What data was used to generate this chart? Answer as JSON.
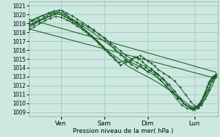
{
  "title": "Pression niveau de la mer( hPa )",
  "ylim": [
    1008.5,
    1021.5
  ],
  "yticks": [
    1009,
    1010,
    1011,
    1012,
    1013,
    1014,
    1015,
    1016,
    1017,
    1018,
    1019,
    1020,
    1021
  ],
  "xtick_positions": [
    0.18,
    0.42,
    0.66,
    0.92
  ],
  "xtick_labels": [
    "Ven",
    "Sam",
    "Dim",
    "Lun"
  ],
  "bg_color": "#cce8e0",
  "grid_color": "#a0c8bc",
  "line_color": "#1a5c28",
  "xlim": [
    0.0,
    1.05
  ],
  "fig_width": 3.2,
  "fig_height": 2.0,
  "dpi": 100,
  "lines": [
    {
      "pts": [
        0.0,
        1018.8,
        0.02,
        1019.0,
        0.04,
        1019.2,
        0.06,
        1019.4,
        0.08,
        1019.6,
        0.1,
        1019.9,
        0.12,
        1020.1,
        0.14,
        1020.2,
        0.16,
        1020.3,
        0.18,
        1020.2,
        0.2,
        1020.0,
        0.22,
        1019.8,
        0.24,
        1019.5,
        0.27,
        1019.2,
        0.3,
        1018.9,
        0.33,
        1018.6,
        0.36,
        1018.2,
        0.39,
        1017.8,
        0.42,
        1017.4,
        0.45,
        1016.9,
        0.48,
        1016.4,
        0.51,
        1015.9,
        0.54,
        1015.4,
        0.57,
        1015.0,
        0.6,
        1015.2,
        0.62,
        1015.4,
        0.64,
        1015.1,
        0.66,
        1014.8,
        0.68,
        1014.5,
        0.7,
        1014.2,
        0.72,
        1013.8,
        0.75,
        1013.4,
        0.78,
        1013.0,
        0.81,
        1012.5,
        0.84,
        1011.8,
        0.87,
        1011.0,
        0.9,
        1010.2,
        0.92,
        1009.7,
        0.94,
        1009.4,
        0.96,
        1009.8,
        0.98,
        1010.5,
        1.0,
        1011.5,
        1.02,
        1012.5,
        1.04,
        1013.0
      ],
      "marker": true
    },
    {
      "pts": [
        0.0,
        1019.0,
        0.02,
        1019.3,
        0.05,
        1019.6,
        0.08,
        1019.9,
        0.11,
        1020.2,
        0.14,
        1020.4,
        0.17,
        1020.5,
        0.19,
        1020.4,
        0.21,
        1020.2,
        0.24,
        1019.9,
        0.27,
        1019.5,
        0.3,
        1019.1,
        0.33,
        1018.7,
        0.36,
        1018.3,
        0.39,
        1017.8,
        0.42,
        1017.3,
        0.45,
        1016.7,
        0.48,
        1016.1,
        0.51,
        1015.5,
        0.54,
        1014.9,
        0.57,
        1014.4,
        0.6,
        1014.0,
        0.62,
        1014.2,
        0.64,
        1013.9,
        0.66,
        1013.5,
        0.68,
        1013.8,
        0.7,
        1013.5,
        0.72,
        1013.2,
        0.75,
        1012.7,
        0.78,
        1012.1,
        0.81,
        1011.4,
        0.84,
        1010.6,
        0.87,
        1009.8,
        0.9,
        1009.4,
        0.92,
        1009.3,
        0.94,
        1009.5,
        0.96,
        1010.0,
        0.98,
        1011.0,
        1.0,
        1012.2,
        1.02,
        1012.8,
        1.04,
        1013.1
      ],
      "marker": true
    },
    {
      "pts": [
        0.0,
        1018.5,
        0.03,
        1018.9,
        0.06,
        1019.3,
        0.09,
        1019.6,
        0.12,
        1019.9,
        0.15,
        1020.1,
        0.18,
        1020.0,
        0.2,
        1019.8,
        0.23,
        1019.4,
        0.26,
        1019.0,
        0.29,
        1018.6,
        0.32,
        1018.1,
        0.35,
        1017.6,
        0.38,
        1017.0,
        0.41,
        1016.4,
        0.44,
        1015.8,
        0.47,
        1015.2,
        0.5,
        1014.6,
        0.53,
        1014.8,
        0.56,
        1014.6,
        0.59,
        1015.2,
        0.61,
        1015.0,
        0.63,
        1014.7,
        0.65,
        1014.3,
        0.68,
        1013.9,
        0.71,
        1013.4,
        0.74,
        1012.8,
        0.77,
        1012.1,
        0.8,
        1011.4,
        0.83,
        1010.6,
        0.86,
        1010.0,
        0.89,
        1009.6,
        0.92,
        1009.4,
        0.94,
        1009.8,
        0.96,
        1010.3,
        0.98,
        1011.2,
        1.0,
        1012.4,
        1.02,
        1013.0,
        1.04,
        1013.2
      ],
      "marker": true
    },
    {
      "pts": [
        0.0,
        1018.3,
        0.03,
        1018.6,
        0.06,
        1019.0,
        0.09,
        1019.3,
        0.12,
        1019.6,
        0.15,
        1019.8,
        0.18,
        1019.7,
        0.21,
        1019.4,
        0.24,
        1019.1,
        0.27,
        1018.7,
        0.3,
        1018.3,
        0.33,
        1017.8,
        0.36,
        1017.3,
        0.39,
        1016.7,
        0.42,
        1016.1,
        0.45,
        1015.5,
        0.48,
        1014.9,
        0.51,
        1014.3,
        0.54,
        1014.6,
        0.57,
        1014.9,
        0.6,
        1014.6,
        0.62,
        1014.4,
        0.65,
        1014.1,
        0.67,
        1013.7,
        0.7,
        1013.3,
        0.73,
        1012.7,
        0.76,
        1012.0,
        0.79,
        1011.3,
        0.82,
        1010.5,
        0.85,
        1009.8,
        0.88,
        1009.4,
        0.91,
        1009.3,
        0.93,
        1009.5,
        0.95,
        1010.0,
        0.97,
        1010.8,
        0.99,
        1011.8,
        1.01,
        1012.6,
        1.03,
        1013.1,
        1.04,
        1013.3
      ],
      "marker": true
    },
    {
      "pts": [
        0.0,
        1018.7,
        0.04,
        1019.1,
        0.08,
        1019.5,
        0.12,
        1019.8,
        0.16,
        1020.1,
        0.18,
        1020.0,
        0.22,
        1019.6,
        0.26,
        1019.2,
        0.3,
        1018.7,
        0.34,
        1018.2,
        0.38,
        1017.6,
        0.42,
        1017.0,
        0.46,
        1016.4,
        0.5,
        1015.7,
        0.54,
        1015.1,
        0.58,
        1014.5,
        0.62,
        1014.1,
        0.66,
        1013.6,
        0.7,
        1013.1,
        0.74,
        1012.4,
        0.78,
        1011.6,
        0.82,
        1010.8,
        0.86,
        1010.0,
        0.9,
        1009.5,
        0.93,
        1009.4,
        0.96,
        1010.1,
        0.99,
        1011.3,
        1.02,
        1012.5,
        1.04,
        1013.2
      ],
      "marker": false
    },
    {
      "pts": [
        0.0,
        1019.2,
        0.05,
        1019.7,
        0.1,
        1020.1,
        0.15,
        1020.4,
        0.18,
        1020.5,
        0.22,
        1019.8,
        0.27,
        1019.0,
        0.33,
        1018.0,
        0.39,
        1016.9,
        0.44,
        1015.9,
        0.5,
        1015.0,
        0.55,
        1014.2,
        0.61,
        1013.5,
        0.66,
        1013.0,
        0.72,
        1012.3,
        0.78,
        1011.5,
        0.84,
        1010.6,
        0.89,
        1009.8,
        0.93,
        1009.4,
        0.96,
        1009.9,
        0.99,
        1010.8,
        1.02,
        1012.0,
        1.04,
        1013.0
      ],
      "marker": false
    },
    {
      "pts": [
        0.0,
        1019.5,
        1.04,
        1013.5
      ],
      "marker": false
    },
    {
      "pts": [
        0.0,
        1018.4,
        1.04,
        1012.8
      ],
      "marker": false
    }
  ]
}
